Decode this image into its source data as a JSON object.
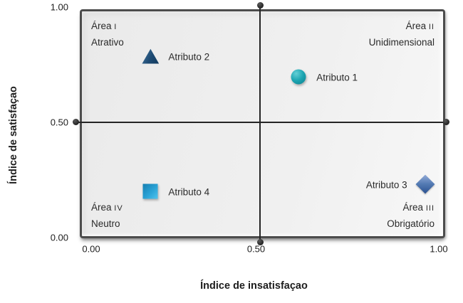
{
  "chart_data": {
    "type": "scatter",
    "title": "",
    "xlabel": "Índice de insatisfaçao",
    "ylabel": "Índice de satisfaçao",
    "xlim": [
      0.0,
      1.0
    ],
    "ylim": [
      0.0,
      1.0
    ],
    "grid": "off",
    "legend": "none",
    "crosshair": {
      "x": 0.5,
      "y": 0.5,
      "endpoint_dots": true
    },
    "xticks": [
      {
        "label": "0.00",
        "value": 0.0
      },
      {
        "label": "0.50",
        "value": 0.5
      },
      {
        "label": "1.00",
        "value": 1.0
      }
    ],
    "yticks": [
      {
        "label": "0.00",
        "value": 0.0
      },
      {
        "label": "0.50",
        "value": 0.5
      },
      {
        "label": "1.00",
        "value": 1.0
      }
    ],
    "quadrants": [
      {
        "prefix": "Área",
        "numeral": "I",
        "name": "Atrativo",
        "position": "top-left"
      },
      {
        "prefix": "Área",
        "numeral": "II",
        "name": "Unidimensional",
        "position": "top-right"
      },
      {
        "prefix": "Área",
        "numeral": "III",
        "name": "Obrigatório",
        "position": "bottom-right"
      },
      {
        "prefix": "Área",
        "numeral": "IV",
        "name": "Neutro",
        "position": "bottom-left"
      }
    ],
    "points": [
      {
        "label": "Atributo 1",
        "x": 0.6,
        "y": 0.71,
        "marker": "circle",
        "color": "#18a0ae",
        "label_side": "right"
      },
      {
        "label": "Atributo 2",
        "x": 0.19,
        "y": 0.8,
        "marker": "triangle",
        "color": "#1c4a73",
        "label_side": "right"
      },
      {
        "label": "Atributo 3",
        "x": 0.95,
        "y": 0.23,
        "marker": "diamond",
        "color": "#41679f",
        "label_side": "left"
      },
      {
        "label": "Atributo 4",
        "x": 0.19,
        "y": 0.2,
        "marker": "square",
        "color": "#2ba3d6",
        "label_side": "right"
      }
    ],
    "colors": {
      "plot_background": "#efefef",
      "frame_border": "#4c4c4c",
      "axis_line": "#242424",
      "text": "#1d1d1d"
    }
  }
}
